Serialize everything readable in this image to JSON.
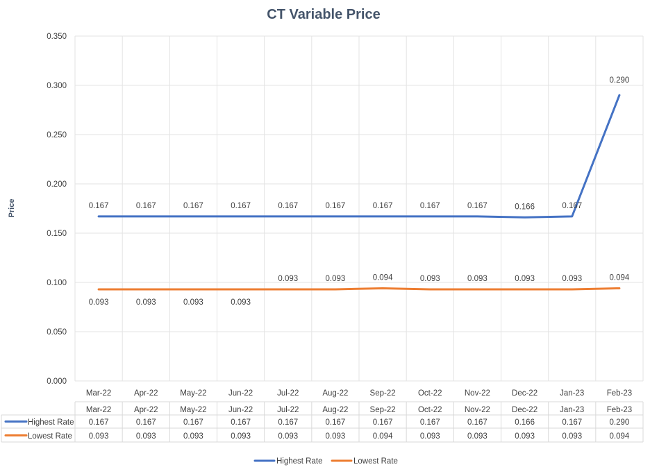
{
  "chart_data": {
    "type": "line",
    "title": "CT Variable Price",
    "xlabel": "",
    "ylabel": "Price",
    "categories": [
      "Mar-22",
      "Apr-22",
      "May-22",
      "Jun-22",
      "Jul-22",
      "Aug-22",
      "Sep-22",
      "Oct-22",
      "Nov-22",
      "Dec-22",
      "Jan-23",
      "Feb-23"
    ],
    "ylim": [
      0,
      0.35
    ],
    "yticks": [
      "0.000",
      "0.050",
      "0.100",
      "0.150",
      "0.200",
      "0.250",
      "0.300",
      "0.350"
    ],
    "grid": true,
    "legend_position": "bottom",
    "data_table": true,
    "series": [
      {
        "name": "Highest Rate",
        "color": "#4472C4",
        "values": [
          0.167,
          0.167,
          0.167,
          0.167,
          0.167,
          0.167,
          0.167,
          0.167,
          0.167,
          0.166,
          0.167,
          0.29
        ],
        "labels": [
          "0.167",
          "0.167",
          "0.167",
          "0.167",
          "0.167",
          "0.167",
          "0.167",
          "0.167",
          "0.167",
          "0.166",
          "0.167",
          "0.290"
        ]
      },
      {
        "name": "Lowest Rate",
        "color": "#ED7D31",
        "values": [
          0.093,
          0.093,
          0.093,
          0.093,
          0.093,
          0.093,
          0.094,
          0.093,
          0.093,
          0.093,
          0.093,
          0.094
        ],
        "labels": [
          "0.093",
          "0.093",
          "0.093",
          "0.093",
          "0.093",
          "0.093",
          "0.094",
          "0.093",
          "0.093",
          "0.093",
          "0.093",
          "0.094"
        ]
      }
    ]
  }
}
